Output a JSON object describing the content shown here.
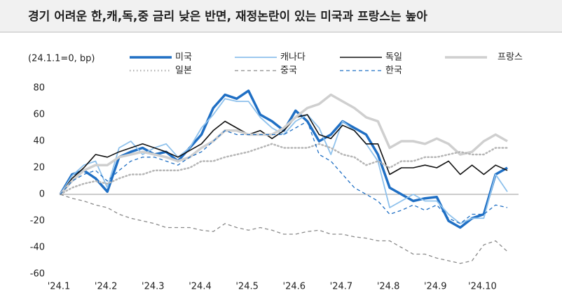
{
  "chart_data": {
    "type": "line",
    "title": "경기 어려운 한,캐,독,중 금리 낮은 반면, 재정논란이 있는 미국과 프랑스는 높아",
    "note": "(24.1.1=0,  bp)",
    "categories": [
      "'24.1",
      null,
      null,
      null,
      "'24.2",
      null,
      null,
      null,
      "'24.3",
      null,
      null,
      null,
      "'24.4",
      null,
      null,
      null,
      "'24.5",
      null,
      null,
      null,
      "'24.6",
      null,
      null,
      null,
      "'24.7",
      null,
      null,
      null,
      "'24.8",
      null,
      null,
      null,
      "'24.9",
      null,
      null,
      null,
      "'24.10",
      null,
      null
    ],
    "series": [
      {
        "name": "미국",
        "color": "#1f6fc4",
        "width": 3.5,
        "dash": "solid",
        "values": [
          0,
          15,
          18,
          12,
          2,
          28,
          32,
          35,
          30,
          32,
          25,
          35,
          45,
          65,
          75,
          72,
          78,
          60,
          55,
          48,
          63,
          55,
          40,
          45,
          55,
          50,
          45,
          30,
          5,
          0,
          -5,
          -3,
          -2,
          -20,
          -25,
          -18,
          -15,
          15,
          20
        ]
      },
      {
        "name": "캐나다",
        "color": "#8ec1ec",
        "width": 1.8,
        "dash": "solid",
        "values": [
          0,
          14,
          22,
          25,
          5,
          35,
          40,
          30,
          35,
          38,
          28,
          35,
          50,
          60,
          72,
          70,
          70,
          58,
          50,
          45,
          55,
          60,
          50,
          30,
          55,
          48,
          38,
          25,
          -10,
          -5,
          0,
          -5,
          -5,
          -15,
          -22,
          -18,
          -18,
          15,
          2
        ]
      },
      {
        "name": "독일",
        "color": "#111111",
        "width": 1.6,
        "dash": "solid",
        "values": [
          0,
          12,
          20,
          30,
          28,
          32,
          35,
          38,
          35,
          32,
          28,
          33,
          38,
          48,
          55,
          50,
          45,
          48,
          42,
          48,
          58,
          60,
          45,
          42,
          52,
          48,
          38,
          38,
          15,
          20,
          20,
          22,
          20,
          25,
          15,
          22,
          15,
          22,
          18
        ]
      },
      {
        "name": "프랑스",
        "color": "#cfcfcf",
        "width": 3.5,
        "dash": "solid",
        "values": [
          0,
          10,
          18,
          22,
          22,
          28,
          30,
          32,
          30,
          28,
          25,
          28,
          35,
          40,
          48,
          48,
          45,
          45,
          45,
          50,
          58,
          65,
          68,
          75,
          70,
          65,
          58,
          55,
          35,
          40,
          40,
          38,
          42,
          38,
          30,
          32,
          40,
          45,
          40
        ]
      },
      {
        "name": "일본",
        "color": "#b5b5b5",
        "width": 2.5,
        "dash": "dotted",
        "values": [
          0,
          5,
          8,
          10,
          8,
          12,
          15,
          15,
          18,
          18,
          18,
          20,
          25,
          25,
          28,
          30,
          32,
          35,
          38,
          35,
          35,
          35,
          38,
          35,
          30,
          28,
          22,
          25,
          20,
          25,
          25,
          28,
          28,
          30,
          32,
          30,
          30,
          35,
          35
        ]
      },
      {
        "name": "중국",
        "color": "#8a8a8a",
        "width": 1.3,
        "dash": "dashed",
        "values": [
          0,
          -3,
          -5,
          -8,
          -10,
          -15,
          -18,
          -20,
          -22,
          -25,
          -25,
          -25,
          -27,
          -28,
          -22,
          -25,
          -27,
          -25,
          -27,
          -30,
          -30,
          -28,
          -27,
          -30,
          -30,
          -32,
          -33,
          -35,
          -35,
          -40,
          -45,
          -45,
          -48,
          -50,
          -52,
          -50,
          -38,
          -35,
          -43
        ]
      },
      {
        "name": "한국",
        "color": "#1f6fc4",
        "width": 1.3,
        "dash": "dashed",
        "values": [
          0,
          10,
          15,
          18,
          10,
          18,
          25,
          28,
          28,
          25,
          22,
          28,
          32,
          40,
          48,
          45,
          45,
          45,
          45,
          45,
          50,
          55,
          30,
          25,
          15,
          5,
          0,
          -5,
          -15,
          -12,
          -8,
          -12,
          -8,
          -18,
          -22,
          -15,
          -15,
          -8,
          -10
        ]
      }
    ],
    "ylim": [
      -60,
      80
    ],
    "yticks": [
      -60,
      -40,
      -20,
      0,
      20,
      40,
      60,
      80
    ]
  }
}
